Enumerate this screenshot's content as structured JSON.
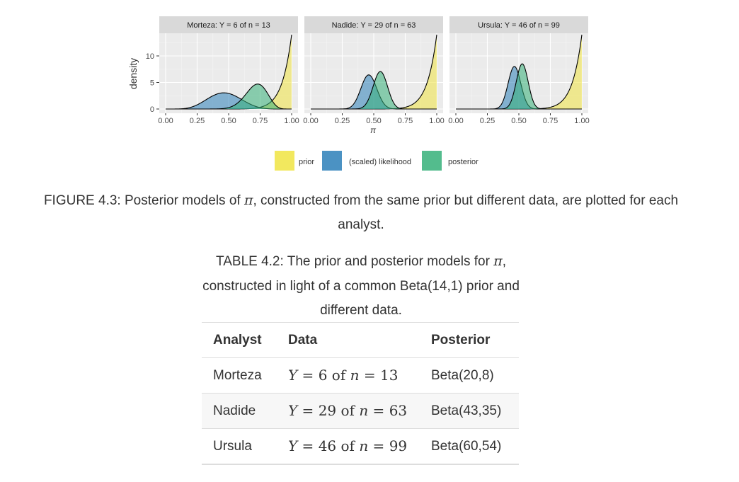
{
  "chart_data": {
    "type": "area",
    "ylabel": "density",
    "xlabel": "π",
    "x_ticks": [
      "0.00",
      "0.25",
      "0.50",
      "0.75",
      "1.00"
    ],
    "y_ticks": [
      "0",
      "5",
      "10"
    ],
    "xlim": [
      0,
      1
    ],
    "ylim": [
      0,
      15
    ],
    "legend_position": "bottom",
    "series": [
      {
        "name": "prior",
        "color": "#f0e442"
      },
      {
        "name": "(scaled) likelihood",
        "color": "#2c7fb8"
      },
      {
        "name": "posterior",
        "color": "#35b079"
      }
    ],
    "panels": [
      {
        "title": "Morteza: Y = 6 of n = 13",
        "prior": "Beta(14,1)",
        "y": 6,
        "n": 13,
        "posterior": "Beta(20,8)"
      },
      {
        "title": "Nadide: Y = 29 of n = 63",
        "prior": "Beta(14,1)",
        "y": 29,
        "n": 63,
        "posterior": "Beta(43,35)"
      },
      {
        "title": "Ursula: Y = 46 of n = 99",
        "prior": "Beta(14,1)",
        "y": 46,
        "n": 99,
        "posterior": "Beta(60,54)"
      }
    ]
  },
  "figure_caption": {
    "prefix": "FIGURE 4.3: Posterior models of ",
    "symbol": "π",
    "suffix": ", constructed from the same prior but different data, are plotted for each analyst."
  },
  "table_caption": {
    "prefix": "TABLE 4.2: The prior and posterior models for ",
    "symbol": "π",
    "suffix": ", constructed in light of a common Beta(14,1) prior and different data."
  },
  "table": {
    "headers": [
      "Analyst",
      "Data",
      "Posterior"
    ],
    "rows": [
      {
        "analyst": "Morteza",
        "y_sym": "Y",
        "y": "6",
        "of": "of",
        "n_sym": "n",
        "n": "13",
        "posterior": "Beta(20,8)"
      },
      {
        "analyst": "Nadide",
        "y_sym": "Y",
        "y": "29",
        "of": "of",
        "n_sym": "n",
        "n": "63",
        "posterior": "Beta(43,35)"
      },
      {
        "analyst": "Ursula",
        "y_sym": "Y",
        "y": "46",
        "of": "of",
        "n_sym": "n",
        "n": "99",
        "posterior": "Beta(60,54)"
      }
    ]
  }
}
